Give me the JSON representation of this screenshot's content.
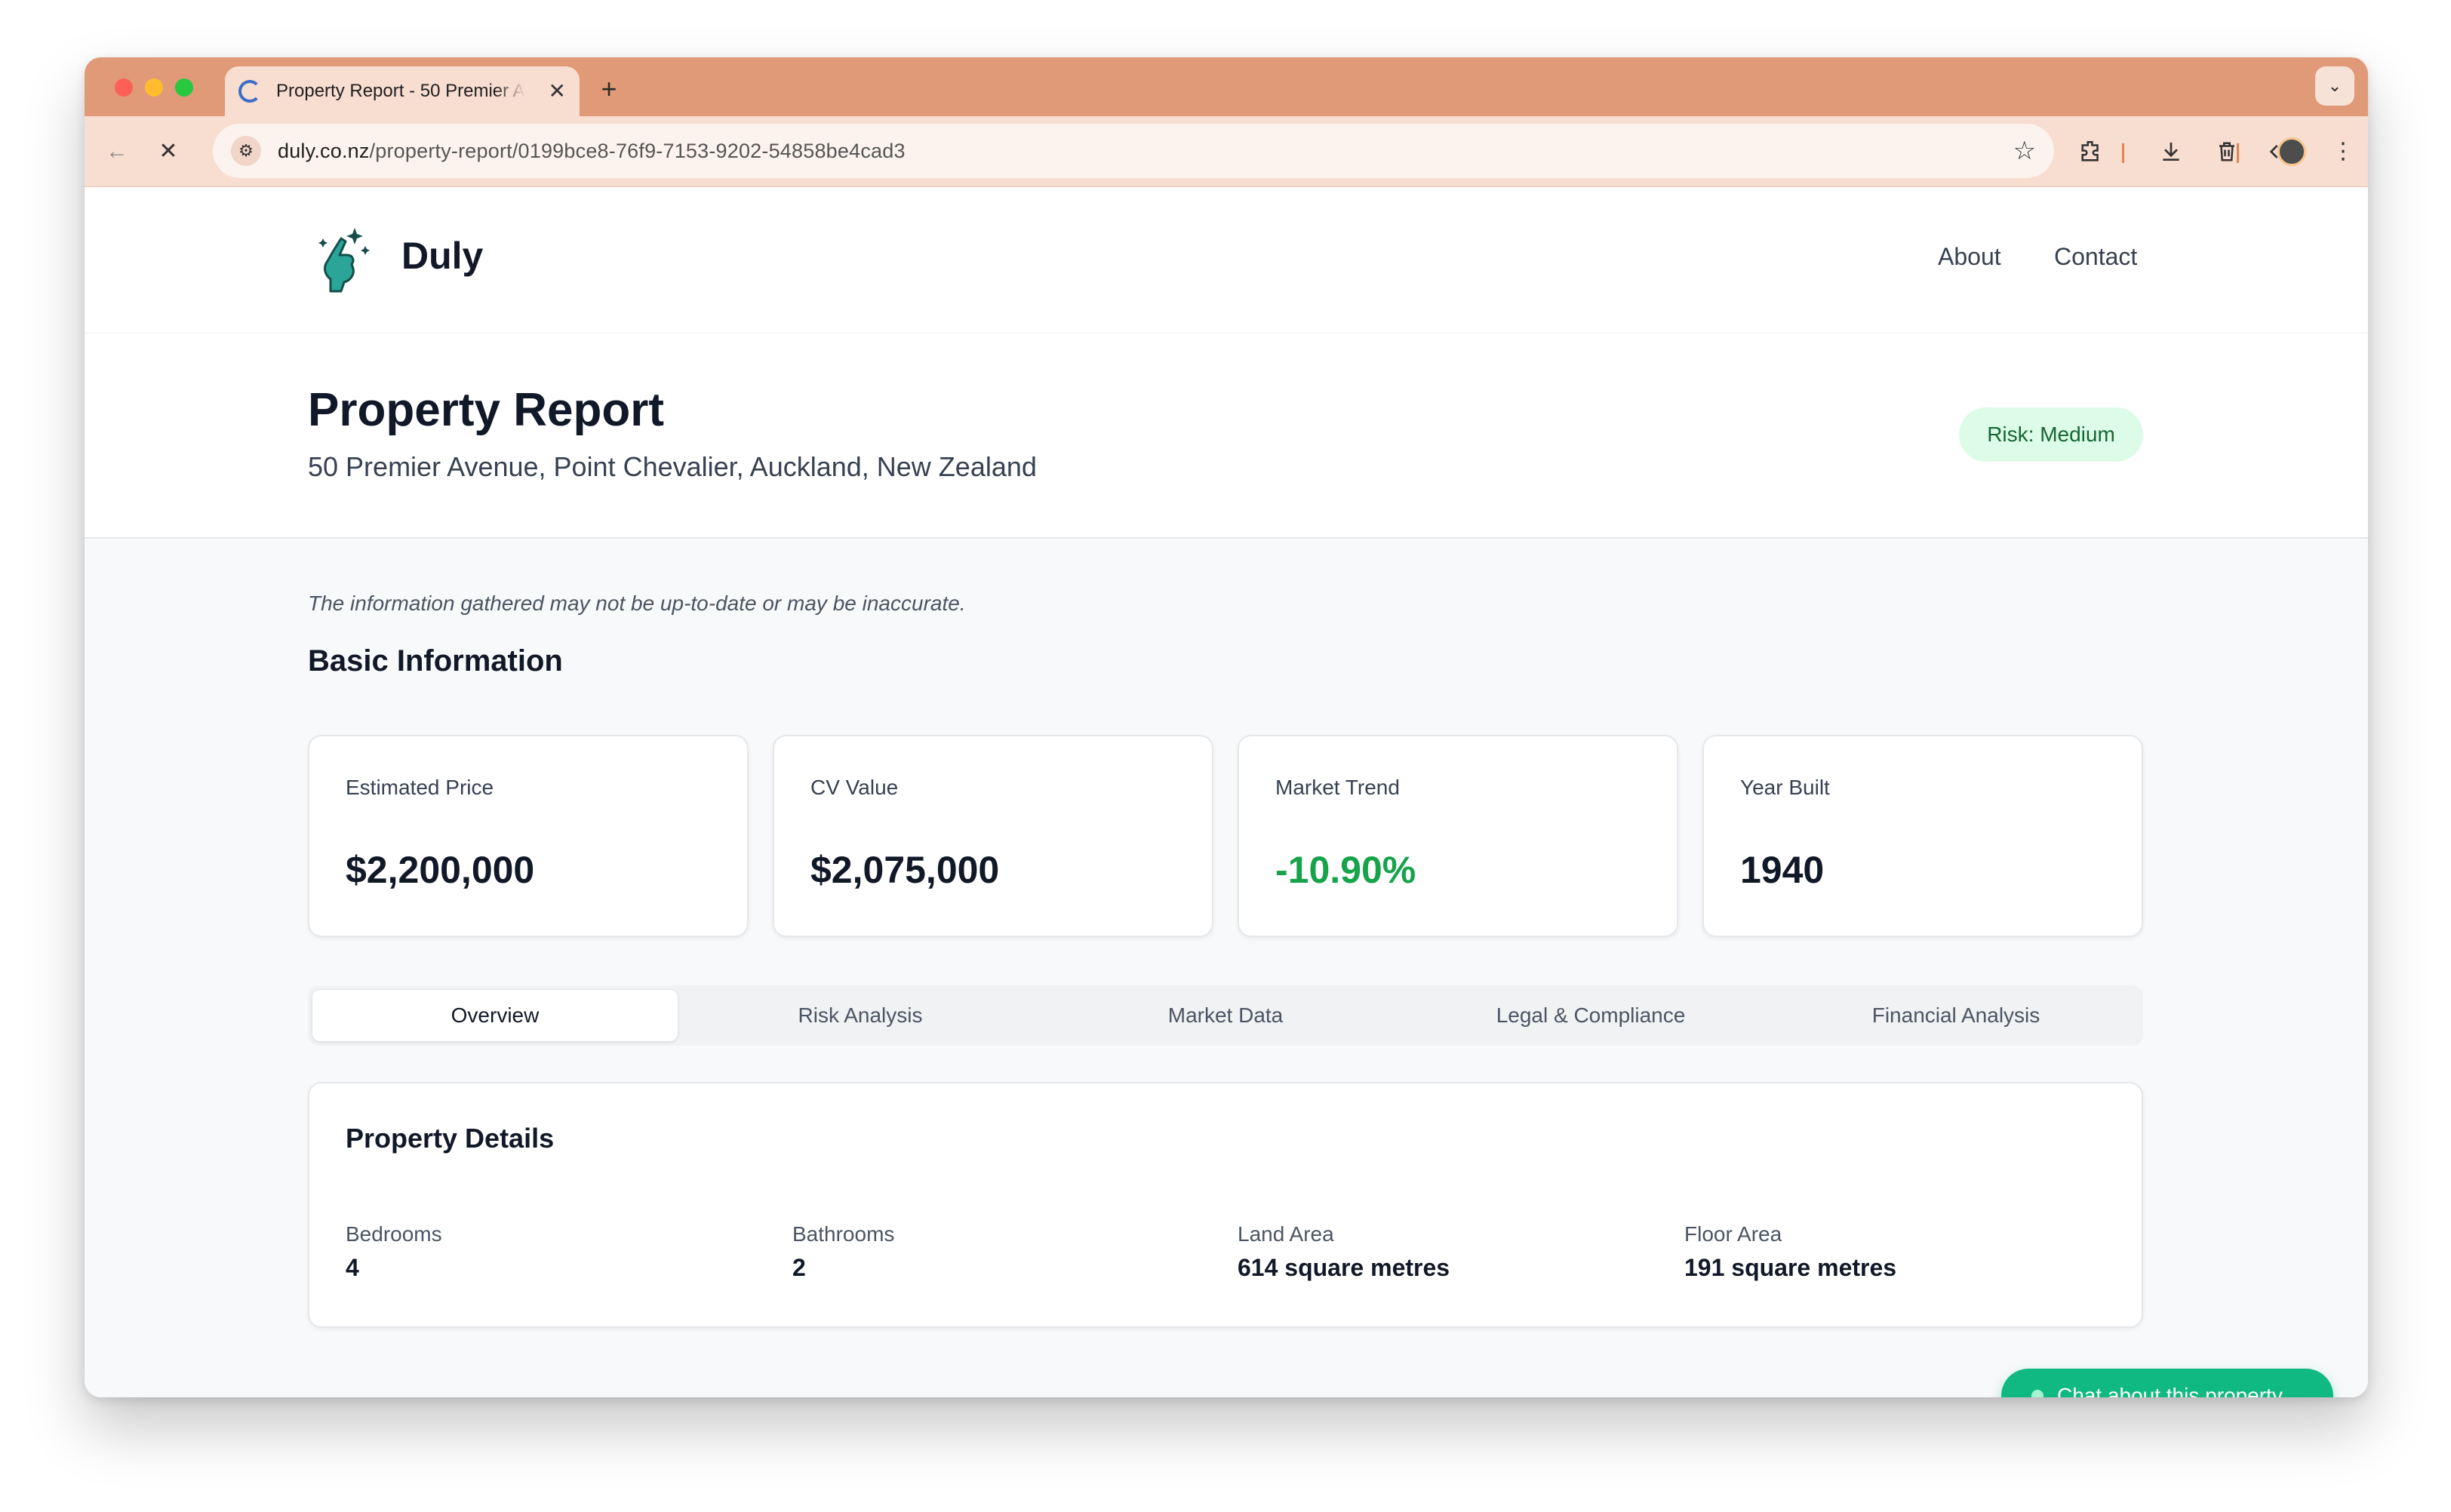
{
  "browser": {
    "tab_title": "Property Report - 50 Premier Avenue, Point Chevalier",
    "tab_close": "✕",
    "new_tab": "+",
    "tab_menu": "⌄",
    "back": "←",
    "stop": "✕",
    "url_host": "duly.co.nz",
    "url_path": "/property-report/0199bce8-76f9-7153-9202-54858be4cad3",
    "bookmark": "☆",
    "menu": "⋮"
  },
  "site": {
    "brand": "Duly",
    "nav": {
      "about": "About",
      "contact": "Contact"
    }
  },
  "hero": {
    "title": "Property Report",
    "address": "50 Premier Avenue, Point Chevalier, Auckland, New Zealand",
    "risk_badge": "Risk: Medium"
  },
  "main": {
    "disclaimer": "The information gathered may not be up-to-date or may be inaccurate.",
    "section_title": "Basic Information",
    "cards": [
      {
        "label": "Estimated Price",
        "value": "$2,200,000"
      },
      {
        "label": "CV Value",
        "value": "$2,075,000"
      },
      {
        "label": "Market Trend",
        "value": "-10.90%"
      },
      {
        "label": "Year Built",
        "value": "1940"
      }
    ],
    "tabs": [
      "Overview",
      "Risk Analysis",
      "Market Data",
      "Legal & Compliance",
      "Financial Analysis"
    ],
    "active_tab": "Overview",
    "details": {
      "title": "Property Details",
      "items": [
        {
          "label": "Bedrooms",
          "value": "4"
        },
        {
          "label": "Bathrooms",
          "value": "2"
        },
        {
          "label": "Land Area",
          "value": "614 square metres"
        },
        {
          "label": "Floor Area",
          "value": "191 square metres"
        }
      ]
    },
    "chat_button": "Chat about this property"
  },
  "colors": {
    "tabstrip": "#e09a78",
    "accent_green": "#10b981",
    "trend_green": "#16a34a",
    "badge_bg": "#dcfce7",
    "badge_text": "#166534"
  }
}
